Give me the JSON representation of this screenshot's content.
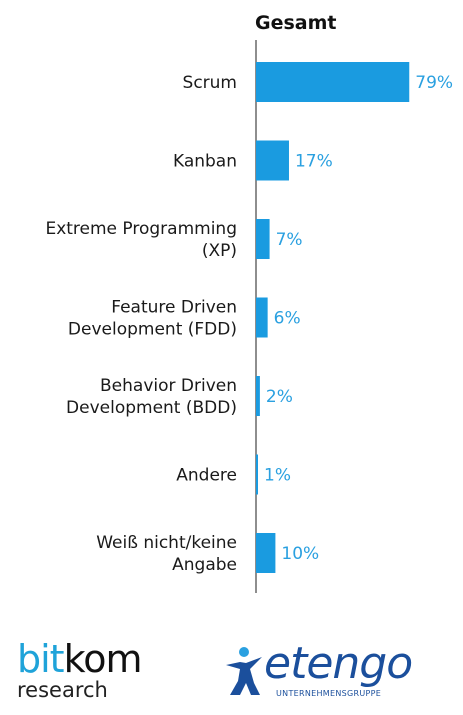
{
  "chart_data": {
    "type": "bar",
    "orientation": "horizontal",
    "title": "Gesamt",
    "categories": [
      [
        "Scrum"
      ],
      [
        "Kanban"
      ],
      [
        "Extreme Programming",
        "(XP)"
      ],
      [
        "Feature Driven",
        "Development (FDD)"
      ],
      [
        "Behavior Driven",
        "Development (BDD)"
      ],
      [
        "Andere"
      ],
      [
        "Weiß nicht/keine",
        "Angabe"
      ]
    ],
    "values": [
      79,
      17,
      7,
      6,
      2,
      1,
      10
    ],
    "value_labels": [
      "79%",
      "17%",
      "7%",
      "6%",
      "2%",
      "1%",
      "10%"
    ],
    "xlim": [
      0,
      100
    ],
    "grid": false,
    "bar_color": "#1a9be0",
    "label_color": "#2aa0e0"
  },
  "logos": {
    "bitkom": {
      "bit": "bit",
      "kom": "kom",
      "sub": "research"
    },
    "etengo": {
      "name": "etengo",
      "sub": "UNTERNEHMENSGRUPPE"
    }
  }
}
